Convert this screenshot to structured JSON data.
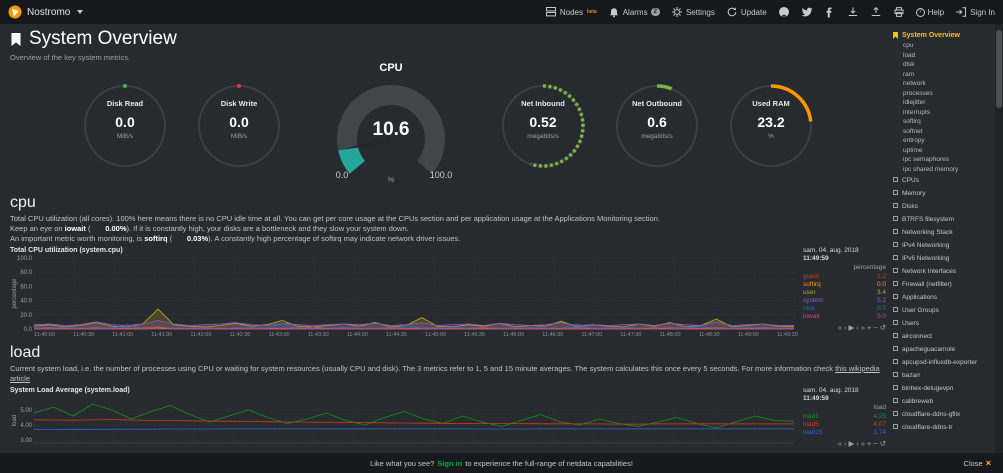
{
  "colors": {
    "accent": "#ffc107",
    "signin_green": "#00ab44"
  },
  "topbar": {
    "brand": "Nostromo",
    "nodes_label": "Nodes",
    "nodes_badge": "beta",
    "alarms_label": "Alarms",
    "alarms_count": "2",
    "settings_label": "Settings",
    "update_label": "Update",
    "help_label": "Help",
    "help_icon_glyph": "?",
    "signin_label": "Sign In"
  },
  "page": {
    "title": "System Overview",
    "subtitle": "Overview of the key system metrics."
  },
  "gauges": {
    "disk_read": {
      "label": "Disk Read",
      "value": "0.0",
      "unit": "MiB/s",
      "percent": 0,
      "color": "#4caf50"
    },
    "disk_write": {
      "label": "Disk Write",
      "value": "0.0",
      "unit": "MiB/s",
      "percent": 0,
      "color": "#e53935"
    },
    "cpu": {
      "label": "CPU",
      "value": "10.6",
      "unit": "%",
      "min": "0.0",
      "max": "100.0",
      "percent": 10.6,
      "color": "#26a69a"
    },
    "net_inbound": {
      "label": "Net Inbound",
      "value": "0.52",
      "unit": "megabits/s",
      "percent": 55,
      "color": "#7cb342",
      "dash": "3,2.5"
    },
    "net_outbound": {
      "label": "Net Outbound",
      "value": "0.6",
      "unit": "megabits/s",
      "percent": 6,
      "color": "#7cb342"
    },
    "used_ram": {
      "label": "Used RAM",
      "value": "23.2",
      "unit": "%",
      "percent": 23.2,
      "color": "#ff9800"
    }
  },
  "cpu_section": {
    "heading": "cpu",
    "p1": "Total CPU utilization (all cores). 100% here means there is no CPU idle time at all. You can get per core usage at the CPUs section and per application usage at the Applications Monitoring section.",
    "p2_pre": "Keep an eye on ",
    "p2_bold": "iowait",
    "p2_mid": " (",
    "p2_val": "0.00%",
    "p2_post": "). If it is constantly high, your disks are a bottleneck and they slow your system down.",
    "p3_pre": "An important metric worth monitoring, is ",
    "p3_bold": "softirq",
    "p3_mid": " (",
    "p3_val": "0.03%",
    "p3_post": "). A constantly high percentage of softirq may indicate network driver issues."
  },
  "load_section": {
    "heading": "load",
    "p1": "Current system load, i.e. the number of processes using CPU or waiting for system resources (usually CPU and disk). The 3 metrics refer to 1, 5 and 15 minute averages. The system calculates this once every 5 seconds. For more information check ",
    "link": "this wikipedia article"
  },
  "chart_toolbar": [
    {
      "glyph": "«",
      "name": "pan-backward-button"
    },
    {
      "glyph": "‹",
      "name": "pan-left-button"
    },
    {
      "glyph": "▶",
      "name": "play-button"
    },
    {
      "glyph": "›",
      "name": "pan-right-button"
    },
    {
      "glyph": "»",
      "name": "pan-forward-button"
    },
    {
      "glyph": "+",
      "name": "zoom-in-button"
    },
    {
      "glyph": "−",
      "name": "zoom-out-button"
    },
    {
      "glyph": "↺",
      "name": "reset-zoom-button"
    }
  ],
  "chart_data": [
    {
      "type": "area",
      "title": "Total CPU utilization (system.cpu)",
      "ylabel": "percentage",
      "ylim": [
        0,
        100
      ],
      "yticks": [
        {
          "v": 100,
          "label": "100.0"
        },
        {
          "v": 80,
          "label": "80.0"
        },
        {
          "v": 60,
          "label": "60.0"
        },
        {
          "v": 40,
          "label": "40.0"
        },
        {
          "v": 20,
          "label": "20.0"
        },
        {
          "v": 0,
          "label": "0.0"
        }
      ],
      "x_labels": [
        "11:40:00",
        "11:40:30",
        "11:41:00",
        "11:41:30",
        "11:42:00",
        "11:42:30",
        "11:43:00",
        "11:43:30",
        "11:44:00",
        "11:44:30",
        "11:45:00",
        "11:45:30",
        "11:46:00",
        "11:46:30",
        "11:47:00",
        "11:47:30",
        "11:48:00",
        "11:48:30",
        "11:49:00",
        "11:49:30"
      ],
      "legend_date": "sam. 04. aug. 2018",
      "legend_time": "11:49:59",
      "legend_unit": "percentage",
      "series": [
        {
          "name": "guest",
          "color": "#dc3912",
          "value": "1.2",
          "values": [
            1,
            2,
            1,
            1,
            2,
            1,
            1,
            2,
            3,
            1,
            1,
            2,
            1,
            1,
            2,
            1,
            1,
            2,
            1,
            1,
            2,
            1,
            1,
            2,
            1,
            1,
            2,
            1,
            1,
            2,
            1,
            1,
            2,
            1,
            1,
            2,
            1,
            1,
            2,
            1,
            1,
            2,
            1,
            1,
            2,
            1,
            1,
            2,
            1,
            1.2
          ]
        },
        {
          "name": "softirq",
          "color": "#ff9900",
          "value": "0.0",
          "values": [
            0.2,
            0.1,
            0.3,
            0.1,
            0.2,
            0.1,
            0.1,
            0.3,
            0.5,
            0.1,
            0.2,
            0.1,
            0.1,
            0.2,
            0.1,
            0.3,
            0.1,
            0.2,
            0.1,
            0.1,
            0.2,
            0.1,
            0.3,
            0.1,
            0.1,
            0.4,
            0.1,
            0.2,
            0.1,
            0.1,
            0.3,
            0.1,
            0.2,
            0.1,
            0.2,
            0.1,
            0.1,
            0.3,
            0.1,
            0.2,
            0.1,
            0.1,
            0.2,
            0.1,
            0.3,
            0.1,
            0.1,
            0.2,
            0.1,
            0.0
          ]
        },
        {
          "name": "user",
          "color": "#c0ab1c",
          "value": "3.4",
          "values": [
            4,
            6,
            3,
            5,
            9,
            4,
            3,
            7,
            28,
            6,
            4,
            3,
            5,
            8,
            4,
            6,
            12,
            4,
            3,
            5,
            7,
            4,
            9,
            3,
            5,
            16,
            4,
            3,
            6,
            4,
            8,
            3,
            5,
            4,
            11,
            3,
            6,
            4,
            3,
            7,
            4,
            9,
            3,
            5,
            14,
            3,
            5,
            7,
            4,
            3.4
          ]
        },
        {
          "name": "system",
          "color": "#8c5bc4",
          "value": "5.2",
          "values": [
            6,
            7,
            5,
            6,
            10,
            6,
            5,
            7,
            12,
            7,
            5,
            6,
            7,
            9,
            6,
            5,
            8,
            6,
            5,
            6,
            7,
            6,
            8,
            5,
            6,
            9,
            5,
            6,
            7,
            5,
            8,
            6,
            5,
            6,
            9,
            5,
            6,
            5,
            6,
            7,
            5,
            8,
            6,
            5,
            10,
            5,
            6,
            7,
            5,
            5.2
          ]
        },
        {
          "name": "nice",
          "color": "#3366cc",
          "value": "0.7",
          "values": [
            1,
            1,
            2,
            1,
            1,
            1,
            6,
            1,
            1,
            2,
            1,
            1,
            1,
            1,
            2,
            1,
            8,
            1,
            1,
            1,
            2,
            1,
            1,
            1,
            5,
            1,
            1,
            2,
            1,
            1,
            1,
            1,
            2,
            1,
            1,
            7,
            1,
            1,
            2,
            1,
            1,
            1,
            1,
            4,
            1,
            1,
            2,
            1,
            1,
            0.7
          ]
        },
        {
          "name": "iowait",
          "color": "#dd4477",
          "value": "0.0",
          "values": [
            0,
            0,
            0,
            0.5,
            0,
            0,
            0,
            0,
            2,
            0,
            0,
            0,
            0.5,
            0,
            0,
            0,
            0,
            0,
            3,
            0,
            0,
            0,
            0,
            0.5,
            0,
            0,
            0,
            0,
            0,
            1,
            0,
            0,
            0,
            0,
            0.5,
            0,
            0,
            0,
            0,
            0,
            2,
            0,
            0,
            0,
            0.5,
            0,
            0,
            0,
            0,
            0
          ]
        }
      ]
    },
    {
      "type": "line",
      "title": "System Load Average (system.load)",
      "ylabel": "load",
      "ylim": [
        2.8,
        5.8
      ],
      "yticks": [
        {
          "v": 5,
          "label": "5.00"
        },
        {
          "v": 4,
          "label": "4.00"
        },
        {
          "v": 3,
          "label": "3.00"
        }
      ],
      "xgrid": 20,
      "legend_date": "sam. 04. aug. 2018",
      "legend_time": "11:49:59",
      "legend_unit": "load",
      "series": [
        {
          "name": "load1",
          "color": "#109618",
          "value": "4.25",
          "values": [
            4.8,
            5.2,
            4.6,
            5.4,
            5.0,
            4.4,
            4.9,
            5.3,
            4.7,
            4.2,
            4.6,
            5.0,
            4.5,
            4.1,
            4.4,
            4.8,
            4.3,
            4.0,
            4.5,
            4.9,
            4.4,
            4.1,
            4.6,
            4.2,
            3.9,
            4.3,
            4.7,
            4.2,
            4.0,
            4.4,
            4.1,
            3.9,
            4.2,
            4.5,
            4.1,
            3.8,
            4.2,
            4.6,
            4.3,
            4.25
          ]
        },
        {
          "name": "load5",
          "color": "#dc3912",
          "value": "4.07",
          "values": [
            4.35,
            4.33,
            4.32,
            4.34,
            4.36,
            4.33,
            4.31,
            4.3,
            4.28,
            4.26,
            4.25,
            4.24,
            4.22,
            4.2,
            4.19,
            4.18,
            4.17,
            4.15,
            4.14,
            4.13,
            4.12,
            4.11,
            4.1,
            4.1,
            4.09,
            4.09,
            4.08,
            4.08,
            4.07,
            4.07,
            4.06,
            4.06,
            4.07,
            4.07,
            4.08,
            4.08,
            4.07,
            4.07,
            4.07,
            4.07
          ]
        },
        {
          "name": "load15",
          "color": "#3366cc",
          "value": "3.74",
          "values": [
            3.7,
            3.7,
            3.71,
            3.71,
            3.72,
            3.72,
            3.72,
            3.73,
            3.73,
            3.73,
            3.74,
            3.74,
            3.74,
            3.74,
            3.74,
            3.75,
            3.75,
            3.75,
            3.74,
            3.74,
            3.74,
            3.74,
            3.74,
            3.73,
            3.73,
            3.73,
            3.74,
            3.74,
            3.74,
            3.74,
            3.74,
            3.74,
            3.74,
            3.74,
            3.74,
            3.74,
            3.74,
            3.74,
            3.74,
            3.74
          ]
        }
      ]
    }
  ],
  "sidebar": {
    "active": "System Overview",
    "sub_items": [
      "cpu",
      "load",
      "disk",
      "ram",
      "network",
      "processes",
      "idlejitter",
      "interrupts",
      "softirq",
      "softnet",
      "entropy",
      "uptime",
      "ipc semaphores",
      "ipc shared memory"
    ],
    "sections": [
      {
        "icon": "bolt",
        "label": "CPUs"
      },
      {
        "icon": "microchip",
        "label": "Memory"
      },
      {
        "icon": "hdd",
        "label": "Disks"
      },
      {
        "icon": "folder",
        "label": "BTRFS filesystem"
      },
      {
        "icon": "cloud",
        "label": "Networking Stack"
      },
      {
        "icon": "globe",
        "label": "IPv4 Networking"
      },
      {
        "icon": "globe",
        "label": "IPv6 Networking"
      },
      {
        "icon": "network-wired",
        "label": "Network Interfaces"
      },
      {
        "icon": "shield",
        "label": "Firewall (netfilter)"
      },
      {
        "icon": "apps",
        "label": "Applications"
      },
      {
        "icon": "user-group",
        "label": "User Groups"
      },
      {
        "icon": "user",
        "label": "Users"
      },
      {
        "icon": "cube",
        "label": "airconnect"
      },
      {
        "icon": "cube",
        "label": "apacheguacamole"
      },
      {
        "icon": "cube",
        "label": "apcupsd-influxdb-exporter"
      },
      {
        "icon": "cube",
        "label": "bazarr"
      },
      {
        "icon": "cube",
        "label": "binhex-delugevpn"
      },
      {
        "icon": "cube",
        "label": "calibreweb"
      },
      {
        "icon": "cube",
        "label": "cloudflare-ddns-gflix"
      },
      {
        "icon": "cube",
        "label": "cloudflare-ddns-tr"
      }
    ]
  },
  "bottom": {
    "msg_pre": "Like what you see?",
    "signin": "Sign in",
    "msg_post": "to experience the full-range of netdata capabilities!",
    "close_label": "Close",
    "close_icon": "×"
  }
}
